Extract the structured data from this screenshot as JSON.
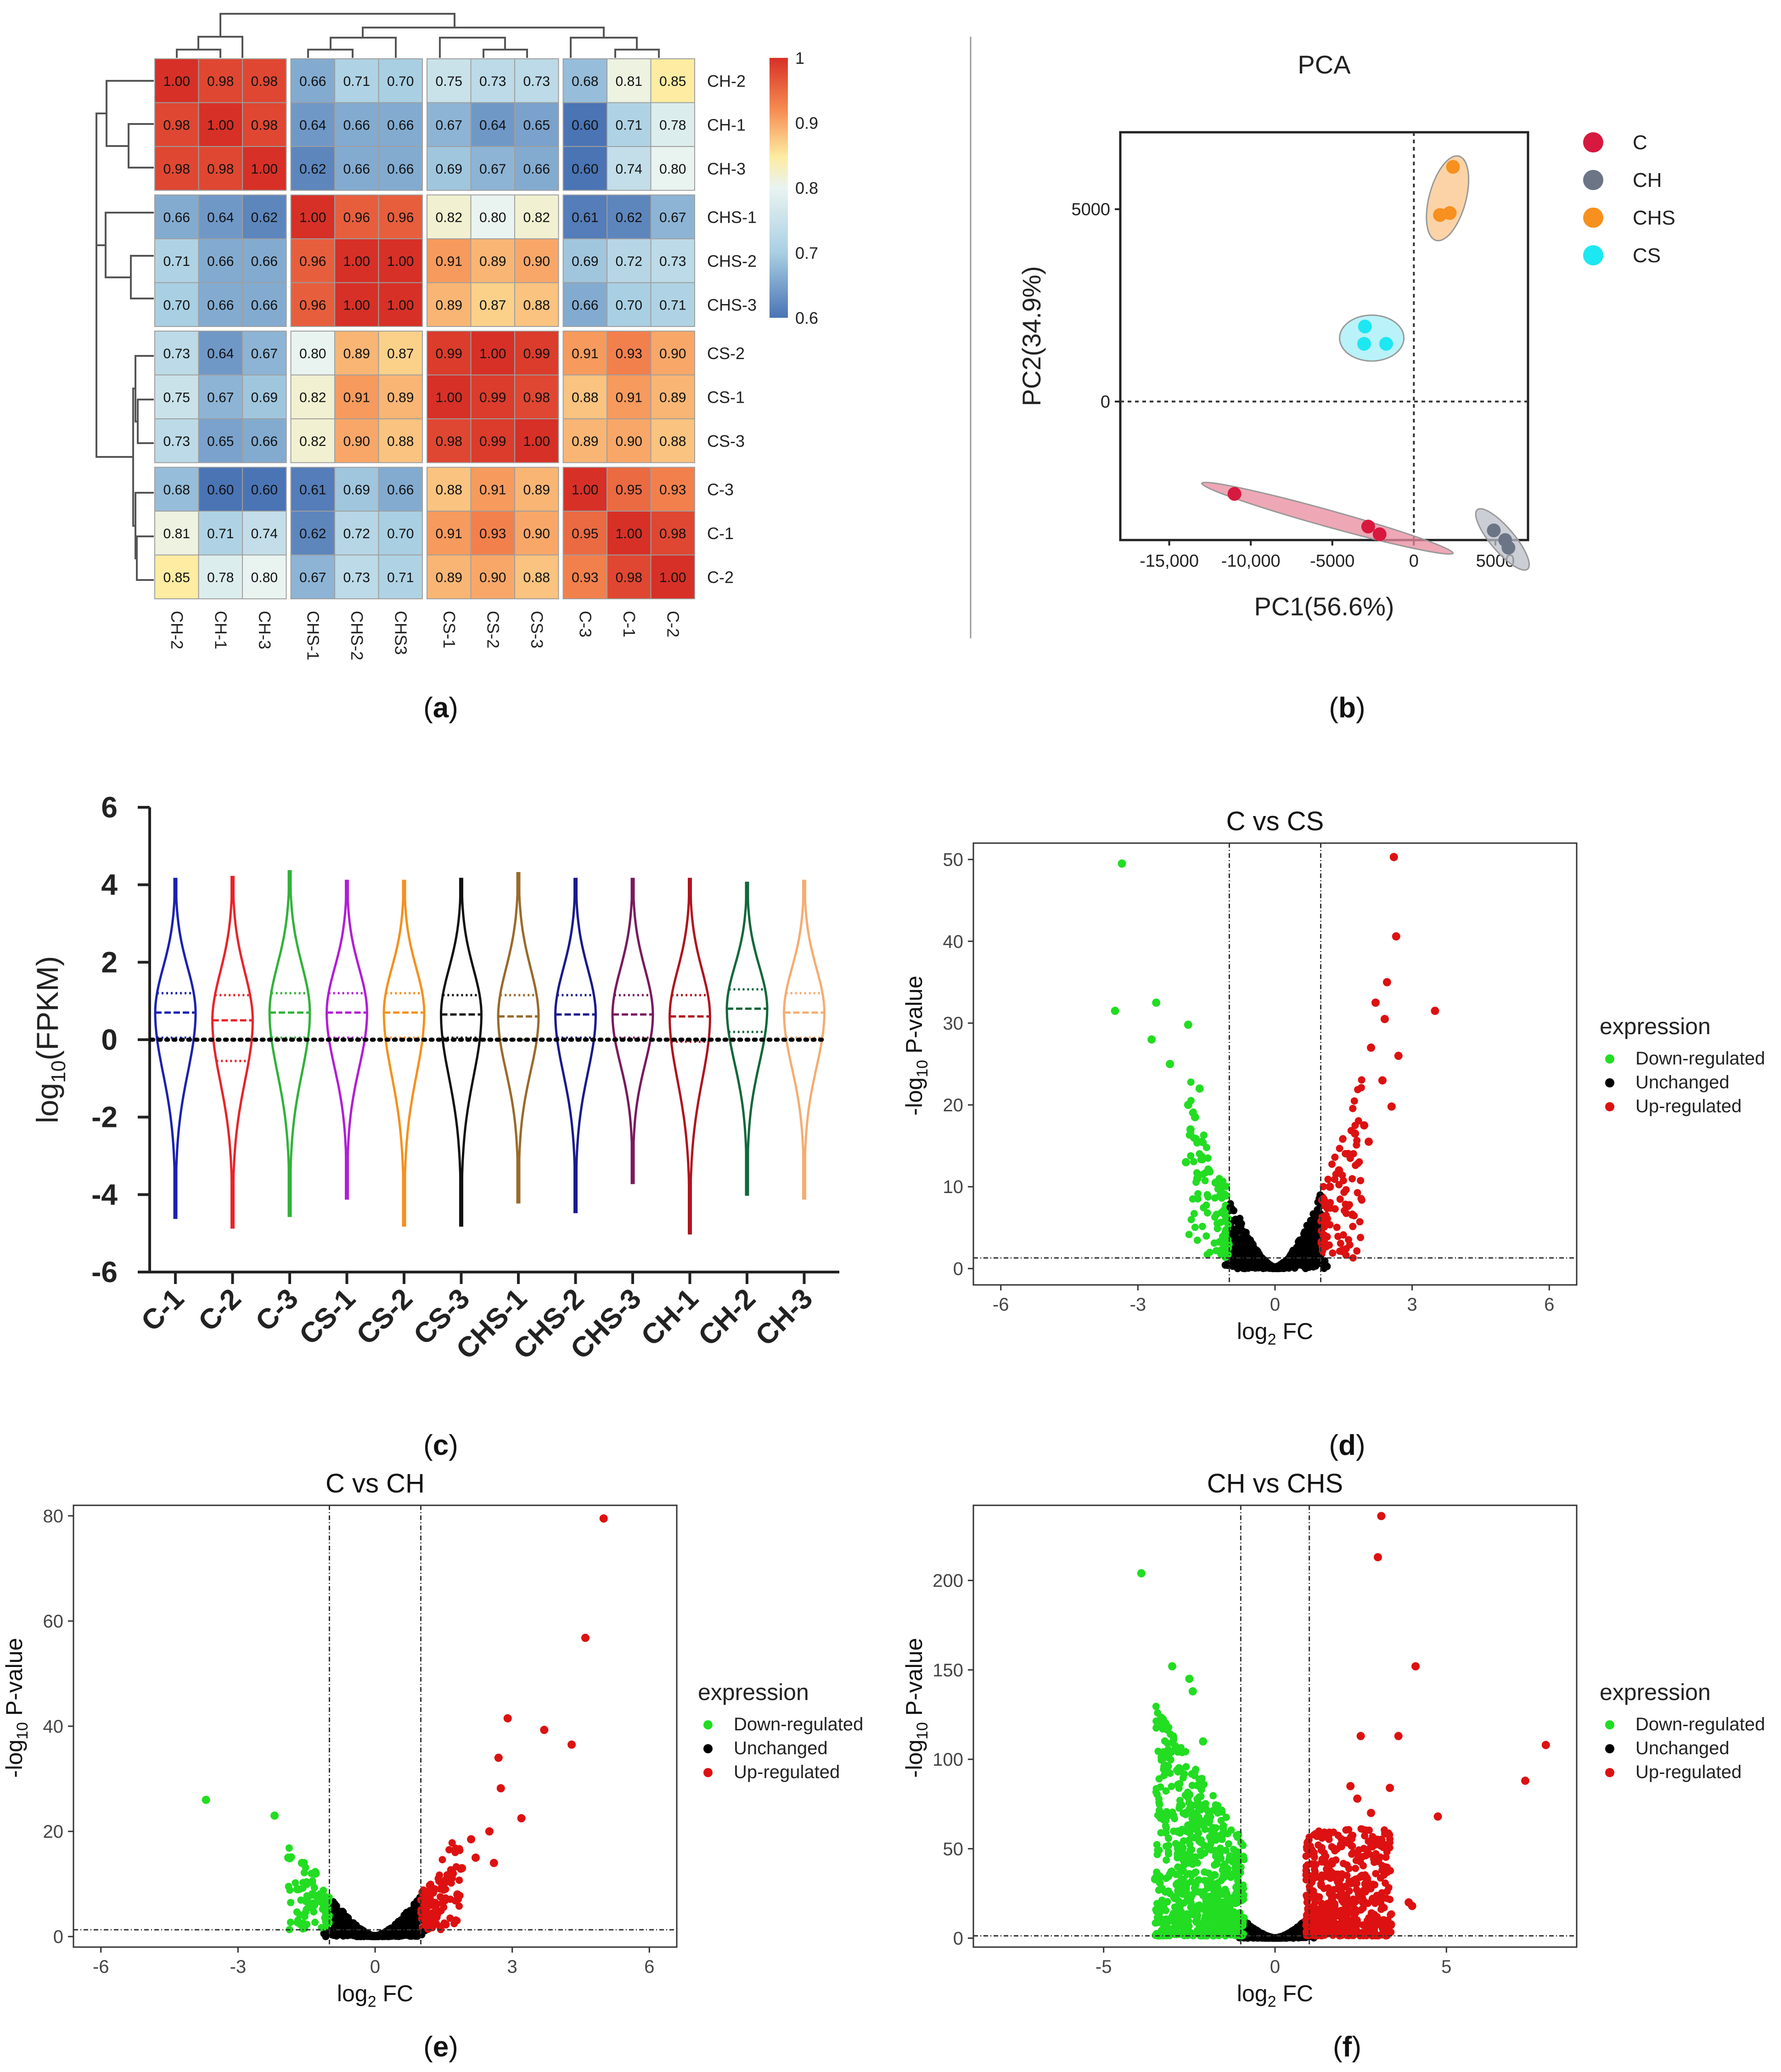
{
  "panel_labels": [
    "a",
    "b",
    "c",
    "d",
    "e",
    "f"
  ],
  "chart_data": [
    {
      "type": "heatmap",
      "panel": "a",
      "title": "",
      "rows": [
        "CH-2",
        "CH-1",
        "CH-3",
        "CHS-1",
        "CHS-2",
        "CHS-3",
        "CS-2",
        "CS-1",
        "CS-3",
        "C-3",
        "C-1",
        "C-2"
      ],
      "columns": [
        "CH-2",
        "CH-1",
        "CH-3",
        "CHS-1",
        "CHS-2",
        "CHS3",
        "CS-1",
        "CS-2",
        "CS-3",
        "C-3",
        "C-1",
        "C-2"
      ],
      "values": [
        [
          1.0,
          0.98,
          0.98,
          0.66,
          0.71,
          0.7,
          0.75,
          0.73,
          0.73,
          0.68,
          0.81,
          0.85
        ],
        [
          0.98,
          1.0,
          0.98,
          0.64,
          0.66,
          0.66,
          0.67,
          0.64,
          0.65,
          0.6,
          0.71,
          0.78
        ],
        [
          0.98,
          0.98,
          1.0,
          0.62,
          0.66,
          0.66,
          0.69,
          0.67,
          0.66,
          0.6,
          0.74,
          0.8
        ],
        [
          0.66,
          0.64,
          0.62,
          1.0,
          0.96,
          0.96,
          0.82,
          0.8,
          0.82,
          0.61,
          0.62,
          0.67
        ],
        [
          0.71,
          0.66,
          0.66,
          0.96,
          1.0,
          1.0,
          0.91,
          0.89,
          0.9,
          0.69,
          0.72,
          0.73
        ],
        [
          0.7,
          0.66,
          0.66,
          0.96,
          1.0,
          1.0,
          0.89,
          0.87,
          0.88,
          0.66,
          0.7,
          0.71
        ],
        [
          0.73,
          0.64,
          0.67,
          0.8,
          0.89,
          0.87,
          0.99,
          1.0,
          0.99,
          0.91,
          0.93,
          0.9
        ],
        [
          0.75,
          0.67,
          0.69,
          0.82,
          0.91,
          0.89,
          1.0,
          0.99,
          0.98,
          0.88,
          0.91,
          0.89
        ],
        [
          0.73,
          0.65,
          0.66,
          0.82,
          0.9,
          0.88,
          0.98,
          0.99,
          1.0,
          0.89,
          0.9,
          0.88
        ],
        [
          0.68,
          0.6,
          0.6,
          0.61,
          0.69,
          0.66,
          0.88,
          0.91,
          0.89,
          1.0,
          0.95,
          0.93
        ],
        [
          0.81,
          0.71,
          0.74,
          0.62,
          0.72,
          0.7,
          0.91,
          0.93,
          0.9,
          0.95,
          1.0,
          0.98
        ],
        [
          0.85,
          0.78,
          0.8,
          0.67,
          0.73,
          0.71,
          0.89,
          0.9,
          0.88,
          0.93,
          0.98,
          1.0
        ]
      ],
      "colorbar": {
        "ticks": [
          "1",
          "0.9",
          "0.8",
          "0.7",
          "0.6"
        ],
        "range": [
          0.6,
          1.0
        ],
        "colors": [
          "#4a74b4",
          "#e9f4f1",
          "#fdeca1",
          "#d73027"
        ]
      }
    },
    {
      "type": "scatter",
      "panel": "b",
      "title": "PCA",
      "xlabel": "PC1(56.6%)",
      "ylabel": "PC2(34.9%)",
      "xlim": [
        -18000,
        7000
      ],
      "ylim": [
        -3600,
        7000
      ],
      "xticks": [
        -15000,
        -10000,
        -5000,
        0,
        5000
      ],
      "xtick_labels": [
        "-15,000",
        "-10,000",
        "-5000",
        "0",
        "5000"
      ],
      "yticks": [
        0,
        5000
      ],
      "ytick_labels": [
        "0",
        "5000"
      ],
      "series": [
        {
          "name": "C",
          "color": "#d7193f",
          "x": [
            -11000,
            -2800,
            -2100
          ],
          "y": [
            -2400,
            -3250,
            -3450
          ]
        },
        {
          "name": "CH",
          "color": "#6b7585",
          "x": [
            4900,
            5600,
            5800
          ],
          "y": [
            -3350,
            -3600,
            -3800
          ]
        },
        {
          "name": "CHS",
          "color": "#f7901e",
          "x": [
            2400,
            1600,
            2200
          ],
          "y": [
            6100,
            4850,
            4900
          ]
        },
        {
          "name": "CS",
          "color": "#1de7f2",
          "x": [
            -3000,
            -3050,
            -1700
          ],
          "y": [
            1950,
            1500,
            1500
          ]
        }
      ]
    },
    {
      "type": "violin",
      "panel": "c",
      "ylabel_main": "log",
      "ylabel_sub": "10",
      "ylabel_rest": "(FPKM)",
      "ylim": [
        -6,
        6
      ],
      "yticks": [
        -6,
        -4,
        -2,
        0,
        2,
        4,
        6
      ],
      "categories": [
        "C-1",
        "C-2",
        "C-3",
        "CS-1",
        "CS-2",
        "CS-3",
        "CHS-1",
        "CHS-2",
        "CHS-3",
        "CH-1",
        "CH-2",
        "CH-3"
      ],
      "colors": [
        "#1a22b0",
        "#e8242a",
        "#31b23a",
        "#b21ed6",
        "#f4911e",
        "#111111",
        "#9a6a2a",
        "#1a1a8c",
        "#7a1a5e",
        "#b0141e",
        "#11683c",
        "#f5ad72"
      ],
      "max": [
        4.15,
        4.2,
        4.35,
        4.1,
        4.1,
        4.15,
        4.3,
        4.15,
        4.15,
        4.15,
        4.05,
        4.1
      ],
      "min": [
        -4.6,
        -4.85,
        -4.55,
        -4.1,
        -4.8,
        -4.8,
        -4.2,
        -4.45,
        -3.7,
        -5.0,
        -4.0,
        -4.1
      ],
      "q1": [
        0.05,
        -0.55,
        0.05,
        0.05,
        0.05,
        0.05,
        0.0,
        0.05,
        0.05,
        -0.05,
        0.2,
        0.05
      ],
      "median": [
        0.7,
        0.5,
        0.7,
        0.7,
        0.7,
        0.65,
        0.6,
        0.65,
        0.65,
        0.6,
        0.8,
        0.7
      ],
      "q3": [
        1.2,
        1.15,
        1.2,
        1.2,
        1.2,
        1.15,
        1.15,
        1.15,
        1.15,
        1.15,
        1.3,
        1.2
      ]
    },
    {
      "type": "scatter",
      "panel": "d",
      "title": "C vs CS",
      "xlabel_main": "log",
      "xlabel_sub": "2",
      "xlabel_rest": " FC",
      "ylabel_pre": "-log",
      "ylabel_sub": "10",
      "ylabel_rest": " P-value",
      "xlim": [
        -6.6,
        6.6
      ],
      "ylim": [
        -2,
        52
      ],
      "xticks": [
        -6,
        -3,
        0,
        3,
        6
      ],
      "yticks": [
        0,
        10,
        20,
        30,
        40,
        50
      ],
      "fc_threshold": 1,
      "p_threshold": 1.3,
      "legend_title": "expression",
      "legend_entries": [
        "Down-regulated",
        "Unchanged",
        "Up-regulated"
      ],
      "legend_colors": [
        "#22dd22",
        "#000000",
        "#dd1111"
      ],
      "down": {
        "x": [
          -3.35,
          -3.5,
          -2.6,
          -2.7,
          -1.9,
          -2.3,
          -1.65,
          -1.9,
          -1.75,
          -1.85,
          -1.6,
          -1.95,
          -1.45,
          -1.7,
          -1.3
        ],
        "y": [
          49.5,
          31.5,
          32.5,
          28,
          29.8,
          25,
          22,
          20,
          18.5,
          17,
          15.5,
          13,
          12,
          11,
          10.5
        ]
      },
      "up": {
        "x": [
          2.6,
          2.65,
          3.5,
          2.45,
          2.2,
          2.7,
          2.4,
          2.35,
          2.55,
          2.1,
          1.95,
          2.05,
          1.75,
          1.6,
          1.4,
          1.2
        ],
        "y": [
          50.3,
          40.6,
          31.5,
          35,
          32.5,
          26,
          30.5,
          23,
          19.8,
          27,
          17.5,
          15.5,
          16.5,
          14,
          12,
          10
        ]
      },
      "cloud": {
        "spread": 1.6,
        "height": 9,
        "dense": 1
      }
    },
    {
      "type": "scatter",
      "panel": "e",
      "title": "C vs CH",
      "xlabel_main": "log",
      "xlabel_sub": "2",
      "xlabel_rest": " FC",
      "ylabel_pre": "-log",
      "ylabel_sub": "10",
      "ylabel_rest": " P-value",
      "xlim": [
        -6.6,
        6.6
      ],
      "ylim": [
        -2,
        82
      ],
      "xticks": [
        -6,
        -3,
        0,
        3,
        6
      ],
      "yticks": [
        0,
        20,
        40,
        60,
        80
      ],
      "fc_threshold": 1,
      "p_threshold": 1.3,
      "legend_title": "expression",
      "legend_entries": [
        "Down-regulated",
        "Unchanged",
        "Up-regulated"
      ],
      "legend_colors": [
        "#22dd22",
        "#000000",
        "#dd1111"
      ],
      "down": {
        "x": [
          -3.7,
          -2.2,
          -1.9,
          -1.6,
          -1.3,
          -1.5,
          -1.2,
          -1.7,
          -1.4,
          -1.1
        ],
        "y": [
          26,
          23,
          15,
          14,
          12,
          10,
          8,
          9,
          6,
          5
        ]
      },
      "up": {
        "x": [
          5.0,
          4.6,
          2.9,
          3.7,
          4.3,
          2.7,
          2.75,
          3.2,
          2.5,
          2.1,
          2.6,
          1.9,
          1.7,
          1.5,
          1.3,
          1.2,
          2.2,
          1.8
        ],
        "y": [
          79.5,
          56.8,
          41.5,
          39.3,
          36.5,
          34,
          28.2,
          22.5,
          20,
          18.5,
          14,
          13,
          12,
          10,
          9,
          6,
          15,
          8
        ]
      },
      "cloud": {
        "spread": 1.5,
        "height": 8,
        "dense": 1
      }
    },
    {
      "type": "scatter",
      "panel": "f",
      "title": "CH vs CHS",
      "xlabel_main": "log",
      "xlabel_sub": "2",
      "xlabel_rest": " FC",
      "ylabel_pre": "-log",
      "ylabel_sub": "10",
      "ylabel_rest": " P-value",
      "xlim": [
        -8.8,
        8.8
      ],
      "ylim": [
        -5,
        242
      ],
      "xticks": [
        -5,
        0,
        5
      ],
      "yticks": [
        0,
        50,
        100,
        150,
        200
      ],
      "fc_threshold": 1,
      "p_threshold": 1.3,
      "legend_title": "expression",
      "legend_entries": [
        "Down-regulated",
        "Unchanged",
        "Up-regulated"
      ],
      "legend_colors": [
        "#22dd22",
        "#000000",
        "#dd1111"
      ],
      "down": {
        "x": [
          -3.9,
          -3.0,
          -2.5,
          -2.4,
          -3.2,
          -3.5,
          -2.1,
          -2.8,
          -2.2,
          -2.6,
          -1.8
        ],
        "y": [
          204,
          152,
          145,
          138,
          120,
          33,
          110,
          95,
          85,
          70,
          60
        ]
      },
      "up": {
        "x": [
          3.1,
          3.0,
          4.1,
          7.9,
          7.3,
          4.75,
          3.6,
          3.35,
          2.5,
          2.2,
          2.4,
          3.9,
          4.0,
          2.8,
          3.1
        ],
        "y": [
          236,
          213,
          152,
          108,
          88,
          68,
          113,
          84,
          113,
          85,
          78,
          20,
          18,
          70,
          55
        ]
      },
      "cloud": {
        "spread": 1.7,
        "height": 12,
        "dense": 1
      },
      "dense_down": {
        "count": 700,
        "xmin": -3.5,
        "xmax": -0.9,
        "ymax": 130
      },
      "dense_up": {
        "count": 520,
        "xmin": 0.9,
        "xmax": 3.4,
        "ymax": 60
      }
    }
  ]
}
